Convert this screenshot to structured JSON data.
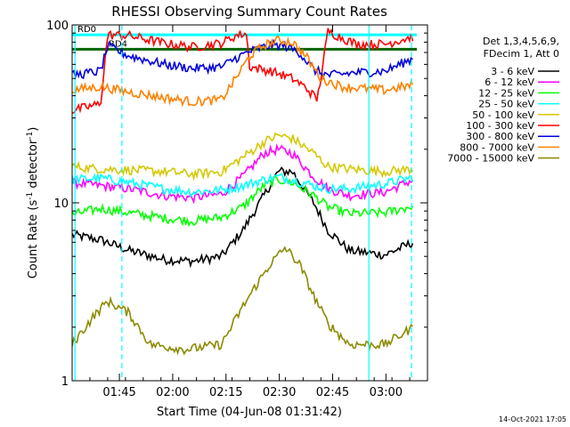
{
  "chart_data": {
    "type": "line",
    "title": "RHESSI Observing Summary Count Rates",
    "xlabel": "Start Time (04-Jun-08 01:31:42)",
    "ylabel_main": "Count Rate (s",
    "ylabel_sup": "-1",
    "ylabel_mid": " detector",
    "ylabel_sup2": "-1",
    "ylabel_end": ")",
    "y_scale": "log",
    "ylim": [
      1,
      100
    ],
    "xlim_minutes": [
      0,
      100
    ],
    "x_tick_labels": [
      "01:45",
      "02:00",
      "02:15",
      "02:30",
      "02:45",
      "03:00"
    ],
    "x_tick_minutes": [
      13.3,
      28.3,
      43.3,
      58.3,
      73.3,
      88.3
    ],
    "y_tick_labels": [
      "1",
      "10",
      "100"
    ],
    "y_tick_values": [
      1,
      10,
      100
    ],
    "legend_header": [
      "Det 1,3,4,5,6,9,",
      "FDecim 1, Att 0"
    ],
    "legend_placement": "right",
    "series": [
      {
        "name": "3 - 6 keV",
        "color": "#000000",
        "points": [
          [
            0,
            6.6
          ],
          [
            8,
            6.2
          ],
          [
            16,
            5.4
          ],
          [
            26,
            4.8
          ],
          [
            34,
            4.7
          ],
          [
            42,
            5.0
          ],
          [
            48,
            7
          ],
          [
            54,
            11
          ],
          [
            58,
            15
          ],
          [
            62,
            15
          ],
          [
            68,
            10
          ],
          [
            72,
            7
          ],
          [
            78,
            5.4
          ],
          [
            88,
            5.1
          ],
          [
            96,
            6.0
          ]
        ]
      },
      {
        "name": "6 - 12 keV",
        "color": "#ff00ff",
        "points": [
          [
            0,
            13
          ],
          [
            8,
            12.5
          ],
          [
            16,
            12
          ],
          [
            26,
            11
          ],
          [
            34,
            10.7
          ],
          [
            42,
            11.2
          ],
          [
            48,
            14
          ],
          [
            54,
            19
          ],
          [
            58,
            20
          ],
          [
            62,
            19
          ],
          [
            68,
            14
          ],
          [
            72,
            12
          ],
          [
            78,
            11
          ],
          [
            88,
            11.5
          ],
          [
            96,
            13.5
          ]
        ]
      },
      {
        "name": "12 - 25 keV",
        "color": "#00ff00",
        "points": [
          [
            0,
            8.6
          ],
          [
            8,
            9.3
          ],
          [
            16,
            8.8
          ],
          [
            26,
            8.2
          ],
          [
            34,
            7.9
          ],
          [
            42,
            8.3
          ],
          [
            48,
            9.5
          ],
          [
            54,
            12.5
          ],
          [
            58,
            13.5
          ],
          [
            62,
            13
          ],
          [
            68,
            11
          ],
          [
            72,
            9.5
          ],
          [
            78,
            8.7
          ],
          [
            88,
            8.8
          ],
          [
            96,
            9.6
          ]
        ]
      },
      {
        "name": "25 - 50 keV",
        "color": "#00ffff",
        "points": [
          [
            0,
            13.5
          ],
          [
            8,
            13.8
          ],
          [
            16,
            13
          ],
          [
            26,
            12
          ],
          [
            34,
            11.5
          ],
          [
            42,
            11.8
          ],
          [
            48,
            12.5
          ],
          [
            54,
            13.5
          ],
          [
            58,
            14
          ],
          [
            62,
            13.5
          ],
          [
            68,
            12.5
          ],
          [
            72,
            12
          ],
          [
            78,
            12
          ],
          [
            88,
            12.8
          ],
          [
            96,
            13.9
          ]
        ]
      },
      {
        "name": "50 - 100 keV",
        "color": "#d4c800",
        "points": [
          [
            0,
            16
          ],
          [
            8,
            15.5
          ],
          [
            16,
            15.3
          ],
          [
            26,
            15
          ],
          [
            34,
            14.5
          ],
          [
            42,
            15
          ],
          [
            48,
            18
          ],
          [
            54,
            22
          ],
          [
            58,
            24
          ],
          [
            62,
            23
          ],
          [
            68,
            19
          ],
          [
            72,
            16
          ],
          [
            78,
            15.5
          ],
          [
            88,
            15
          ],
          [
            96,
            15.5
          ]
        ]
      },
      {
        "name": "100 - 300 keV",
        "color": "#ff0000",
        "points": [
          [
            0,
            33
          ],
          [
            8,
            36
          ],
          [
            10,
            88
          ],
          [
            16,
            87
          ],
          [
            26,
            79
          ],
          [
            34,
            75
          ],
          [
            42,
            79
          ],
          [
            46,
            87
          ],
          [
            49,
            90
          ],
          [
            50,
            58
          ],
          [
            56,
            55
          ],
          [
            62,
            50
          ],
          [
            66,
            44
          ],
          [
            69,
            38
          ],
          [
            72,
            92
          ],
          [
            80,
            78
          ],
          [
            88,
            78
          ],
          [
            96,
            86
          ]
        ]
      },
      {
        "name": "300 - 800 keV",
        "color": "#0000dd",
        "points": [
          [
            0,
            52
          ],
          [
            8,
            55
          ],
          [
            10,
            76
          ],
          [
            16,
            67
          ],
          [
            26,
            60
          ],
          [
            34,
            57
          ],
          [
            42,
            58
          ],
          [
            46,
            65
          ],
          [
            50,
            71
          ],
          [
            56,
            77
          ],
          [
            60,
            76
          ],
          [
            64,
            70
          ],
          [
            68,
            56
          ],
          [
            72,
            52
          ],
          [
            80,
            54
          ],
          [
            88,
            55
          ],
          [
            96,
            65
          ]
        ]
      },
      {
        "name": "800 - 7000 keV",
        "color": "#ff8000",
        "points": [
          [
            0,
            43
          ],
          [
            8,
            45
          ],
          [
            16,
            42
          ],
          [
            26,
            39
          ],
          [
            34,
            37
          ],
          [
            42,
            38
          ],
          [
            46,
            50
          ],
          [
            50,
            67
          ],
          [
            54,
            77
          ],
          [
            58,
            82
          ],
          [
            62,
            80
          ],
          [
            66,
            66
          ],
          [
            70,
            50
          ],
          [
            76,
            45
          ],
          [
            88,
            43
          ],
          [
            96,
            46
          ]
        ]
      },
      {
        "name": "7000 - 15000 keV",
        "color": "#8b8b00",
        "points": [
          [
            0,
            1.6
          ],
          [
            6,
            2.3
          ],
          [
            10,
            2.8
          ],
          [
            16,
            2.4
          ],
          [
            22,
            1.6
          ],
          [
            32,
            1.5
          ],
          [
            42,
            1.6
          ],
          [
            48,
            2.6
          ],
          [
            52,
            3.5
          ],
          [
            56,
            4.6
          ],
          [
            60,
            5.6
          ],
          [
            64,
            4.5
          ],
          [
            68,
            3.0
          ],
          [
            72,
            2.1
          ],
          [
            78,
            1.6
          ],
          [
            88,
            1.6
          ],
          [
            96,
            2.0
          ]
        ]
      }
    ],
    "state_bars": [
      {
        "label": "RD0",
        "color": "#00ffff",
        "level": 88,
        "segments": [
          [
            0,
            97
          ]
        ]
      },
      {
        "label": "RD4",
        "color": "#006400",
        "level": 73,
        "segments": [
          [
            0,
            97
          ]
        ]
      }
    ],
    "cyan_vertical_markers": [
      {
        "minutes": 0.8,
        "style": "solid"
      },
      {
        "minutes": 14.0,
        "style": "dashed"
      },
      {
        "minutes": 83.5,
        "style": "solid"
      },
      {
        "minutes": 95.5,
        "style": "dashed"
      }
    ],
    "timestamp": "14-Oct-2021 17:05"
  }
}
